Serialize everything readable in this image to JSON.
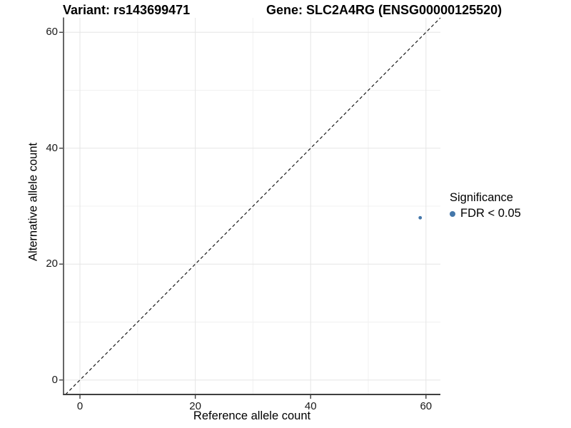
{
  "figure": {
    "title_left": "Variant: rs143699471",
    "title_right": "Gene: SLC2A4RG (ENSG00000125520)"
  },
  "legend": {
    "title": "Significance",
    "entries": [
      {
        "label": "FDR < 0.05",
        "color": "#4477aa"
      }
    ]
  },
  "chart_data": {
    "type": "scatter",
    "title": "Variant: rs143699471 / Gene: SLC2A4RG (ENSG00000125520)",
    "xlabel": "Reference allele count",
    "ylabel": "Alternative allele count",
    "xlim": [
      -2.85,
      62.5
    ],
    "ylim": [
      -2.5,
      62.5
    ],
    "x_ticks": [
      0,
      20,
      40,
      60
    ],
    "y_ticks": [
      0,
      20,
      40,
      60
    ],
    "x_minor_ticks": [
      10,
      30,
      50
    ],
    "y_minor_ticks": [
      10,
      30,
      50
    ],
    "grid": true,
    "legend_position": "right",
    "identity_line": {
      "style": "dashed",
      "from": -2.5,
      "to": 62.5,
      "color": "#1a1a1a"
    },
    "points": [
      {
        "x": 59,
        "y": 28,
        "series": "FDR < 0.05",
        "color": "#4477aa",
        "radius_px": 2.4
      }
    ],
    "colors": {
      "background": "#ffffff",
      "grid_major": "#e5e5e5",
      "grid_minor": "#f1f1f1",
      "axis_line": "#3f3f3f",
      "tick_text": "#191919",
      "point": "#4477aa"
    }
  }
}
